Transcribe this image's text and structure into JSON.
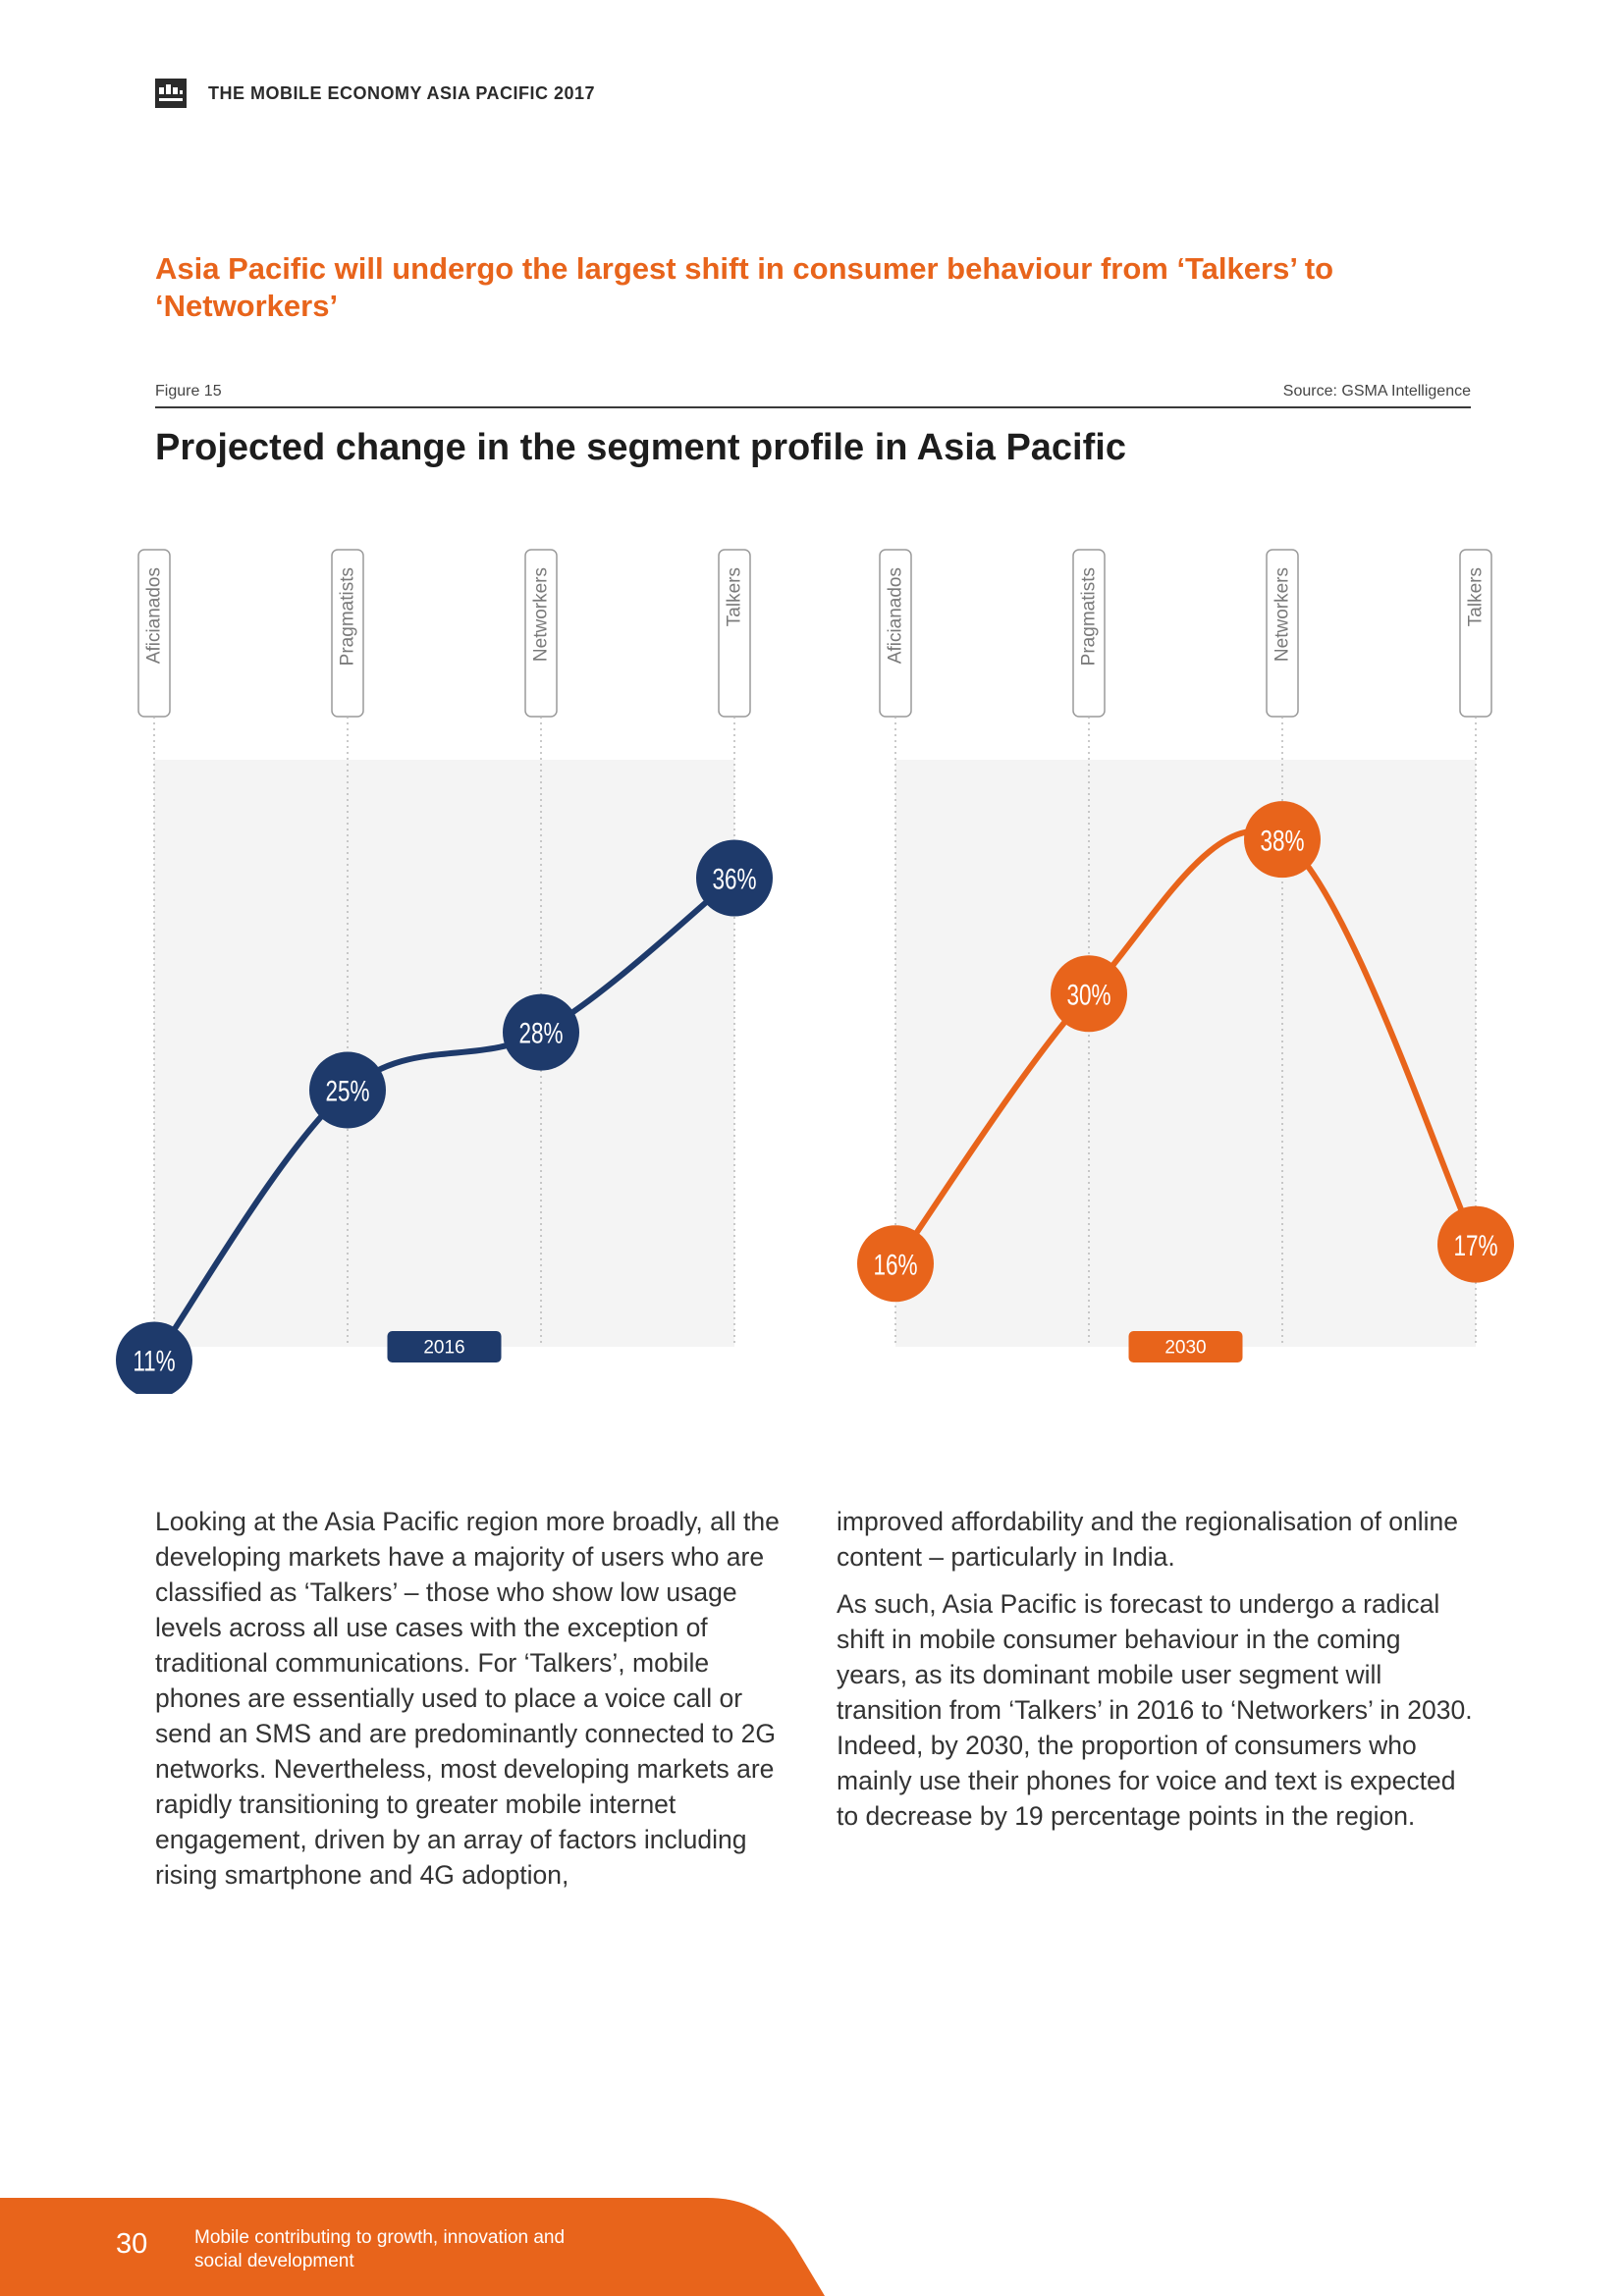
{
  "header": {
    "title": "THE MOBILE ECONOMY ASIA PACIFIC 2017"
  },
  "headline": "Asia Pacific will undergo the largest shift in consumer behaviour from ‘Talkers’ to ‘Networkers’",
  "figure": {
    "label": "Figure 15",
    "source": "Source: GSMA Intelligence",
    "title": "Projected change in the segment profile in Asia Pacific"
  },
  "colors": {
    "accent": "#e8641b",
    "navy": "#1e3a6b",
    "panel": "#f4f4f4"
  },
  "chart_data": [
    {
      "type": "line",
      "title": "",
      "panel_label": "2016",
      "categories": [
        "Aficianados",
        "Pragmatists",
        "Networkers",
        "Talkers"
      ],
      "values": [
        11,
        25,
        28,
        36
      ],
      "value_labels": [
        "11%",
        "25%",
        "28%",
        "36%"
      ],
      "color": "#1e3a6b",
      "grid": false
    },
    {
      "type": "line",
      "title": "",
      "panel_label": "2030",
      "categories": [
        "Aficianados",
        "Pragmatists",
        "Networkers",
        "Talkers"
      ],
      "values": [
        16,
        30,
        38,
        17
      ],
      "value_labels": [
        "16%",
        "30%",
        "38%",
        "17%"
      ],
      "color": "#e8641b",
      "grid": false
    }
  ],
  "body": {
    "left": [
      "Looking at the Asia Pacific region more broadly, all the developing markets have a majority of users who are classified as ‘Talkers’ – those who show low usage levels across all use cases with the exception of traditional communications. For ‘Talkers’, mobile phones are essentially used to place a voice call or send an SMS and are predominantly connected to 2G networks. Nevertheless, most developing markets are rapidly transitioning to greater mobile internet engagement, driven by an array of factors including rising smartphone and 4G adoption,"
    ],
    "right": [
      "improved affordability and the regionalisation of online content – particularly in India.",
      "As such, Asia Pacific is forecast to undergo a radical shift in mobile consumer behaviour in the coming years, as its dominant mobile user segment will transition from ‘Talkers’ in 2016 to ‘Networkers’ in 2030. Indeed, by 2030, the proportion of consumers who mainly use their phones for voice and text is expected to decrease by 19 percentage points in the region."
    ]
  },
  "footer": {
    "page_number": "30",
    "section": "Mobile contributing to growth, innovation and social development"
  }
}
